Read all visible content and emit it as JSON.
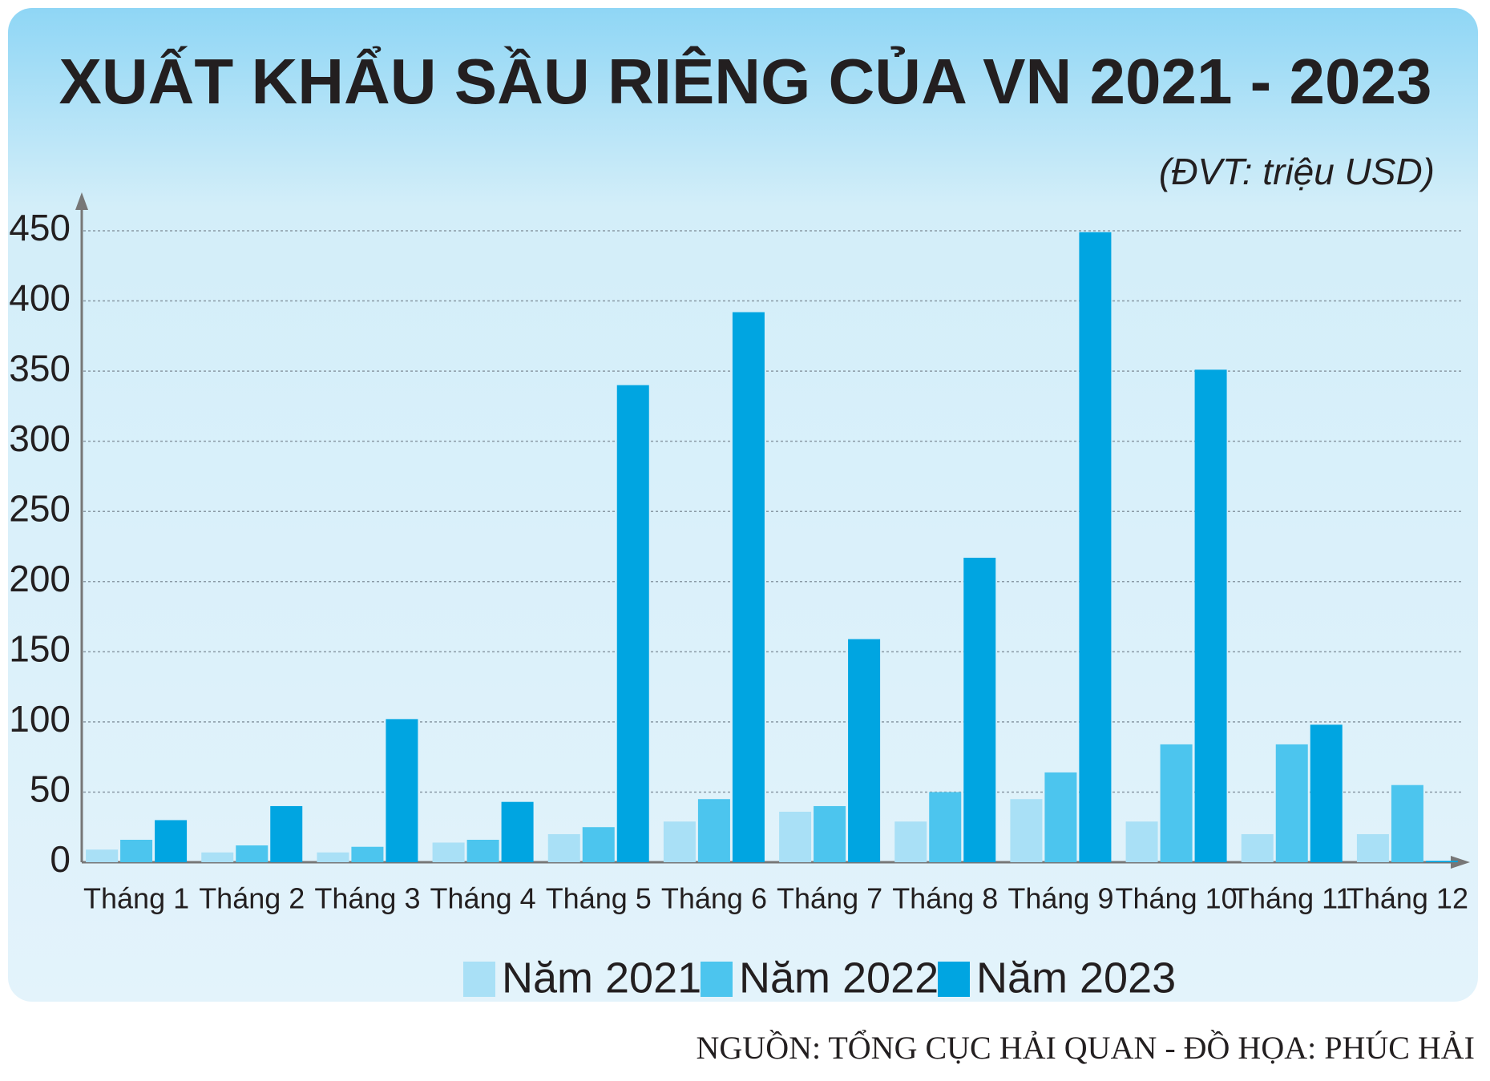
{
  "chart_data": {
    "type": "bar",
    "title": "XUẤT KHẨU SẦU RIÊNG CỦA VN 2021 - 2023",
    "subtitle": "(ĐVT: triệu USD)",
    "source": "NGUỒN: TỔNG CỤC HẢI QUAN - ĐỒ HỌA: PHÚC HẢI",
    "categories": [
      "Tháng 1",
      "Tháng 2",
      "Tháng 3",
      "Tháng 4",
      "Tháng 5",
      "Tháng 6",
      "Tháng 7",
      "Tháng 8",
      "Tháng 9",
      "Tháng 10",
      "Tháng 11",
      "Tháng 12"
    ],
    "series": [
      {
        "name": "Năm 2021",
        "color": "#a9e0f6",
        "values": [
          9,
          7,
          7,
          14,
          20,
          29,
          36,
          29,
          45,
          29,
          20,
          20
        ]
      },
      {
        "name": "Năm 2022",
        "color": "#4cc5ee",
        "values": [
          16,
          12,
          11,
          16,
          25,
          45,
          40,
          50,
          64,
          84,
          84,
          55
        ]
      },
      {
        "name": "Năm 2023",
        "color": "#00a5e1",
        "values": [
          30,
          40,
          102,
          43,
          340,
          392,
          159,
          217,
          449,
          351,
          98,
          1
        ]
      }
    ],
    "ylim": [
      0,
      450
    ],
    "yticks": [
      0,
      50,
      100,
      150,
      200,
      250,
      300,
      350,
      400,
      450
    ],
    "grid": true
  }
}
